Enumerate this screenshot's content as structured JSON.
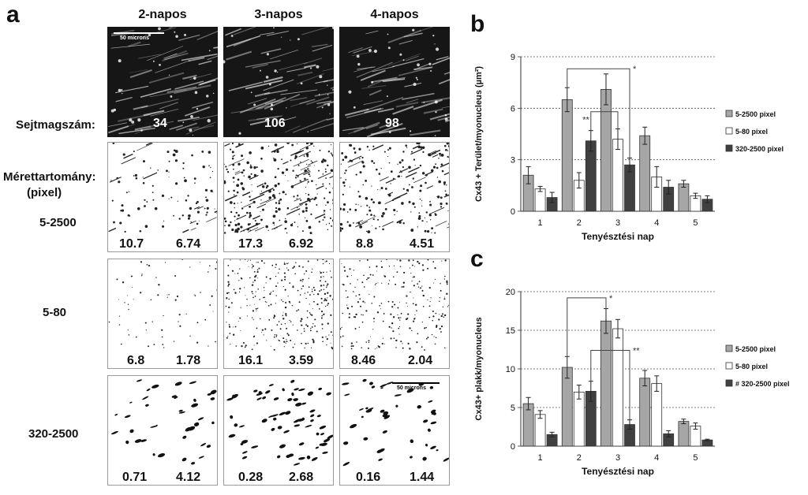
{
  "panels": {
    "a": "a",
    "b": "b",
    "c": "c"
  },
  "micrograph": {
    "columns": [
      "2-napos",
      "3-napos",
      "4-napos"
    ],
    "cell_count_label": "Sejtmagszám:",
    "cell_counts": [
      "34",
      "106",
      "98"
    ],
    "size_range_label_line1": "Mérettartomány:",
    "size_range_label_line2": "(pixel)",
    "scale_label": "50 microns",
    "rows": [
      {
        "label": "5-2500",
        "values": [
          [
            "10.7",
            "6.74"
          ],
          [
            "17.3",
            "6.92"
          ],
          [
            "8.8",
            "4.51"
          ]
        ]
      },
      {
        "label": "5-80",
        "values": [
          [
            "6.8",
            "1.78"
          ],
          [
            "16.1",
            "3.59"
          ],
          [
            "8.46",
            "2.04"
          ]
        ]
      },
      {
        "label": "320-2500",
        "values": [
          [
            "0.71",
            "4.12"
          ],
          [
            "0.28",
            "2.68"
          ],
          [
            "0.16",
            "1.44"
          ]
        ]
      }
    ]
  },
  "chart_data": [
    {
      "type": "bar",
      "panel": "b",
      "categories": [
        "1",
        "2",
        "3",
        "4",
        "5"
      ],
      "series": [
        {
          "name": "5-2500 pixel",
          "color": "#a6a6a6",
          "values": [
            2.1,
            6.5,
            7.1,
            4.4,
            1.6
          ],
          "errors": [
            0.5,
            0.7,
            0.9,
            0.5,
            0.2
          ]
        },
        {
          "name": "5-80 pixel",
          "color": "#ffffff",
          "values": [
            1.3,
            1.8,
            4.2,
            2.0,
            0.9
          ],
          "errors": [
            0.15,
            0.45,
            0.6,
            0.6,
            0.15
          ]
        },
        {
          "name": "320-2500 pixel",
          "color": "#404040",
          "values": [
            0.8,
            4.1,
            2.7,
            1.4,
            0.7
          ],
          "errors": [
            0.3,
            0.6,
            0.4,
            0.4,
            0.2
          ]
        }
      ],
      "xlabel": "Tenyésztési nap",
      "ylabel": "Cx43 + Terület/myonucleus (µm²)",
      "ylim": [
        0,
        9
      ],
      "yticks": [
        "0",
        "3",
        "6",
        "9"
      ],
      "grid": "dotted horizontal",
      "legend": "right",
      "annotations": [
        "*",
        "**"
      ]
    },
    {
      "type": "bar",
      "panel": "c",
      "categories": [
        "1",
        "2",
        "3",
        "4",
        "5"
      ],
      "series": [
        {
          "name": "5-2500 pixel",
          "color": "#a6a6a6",
          "values": [
            5.5,
            10.2,
            16.2,
            8.8,
            3.2
          ],
          "errors": [
            0.8,
            1.4,
            1.6,
            1.0,
            0.3
          ]
        },
        {
          "name": "5-80 pixel",
          "color": "#ffffff",
          "values": [
            4.1,
            7.0,
            15.2,
            8.1,
            2.6
          ],
          "errors": [
            0.5,
            0.9,
            1.2,
            1.0,
            0.4
          ]
        },
        {
          "name": "# 320-2500 pixel",
          "color": "#404040",
          "values": [
            1.5,
            7.1,
            2.8,
            1.6,
            0.8
          ],
          "errors": [
            0.3,
            1.3,
            0.6,
            0.4,
            0.1
          ]
        }
      ],
      "xlabel": "Tenyésztési nap",
      "ylabel": "Cx43+ plakk/myonucleus",
      "ylim": [
        0,
        20
      ],
      "yticks": [
        "0",
        "5",
        "10",
        "15",
        "20"
      ],
      "grid": "dotted horizontal",
      "legend": "right",
      "annotations": [
        "*",
        "**"
      ]
    }
  ]
}
